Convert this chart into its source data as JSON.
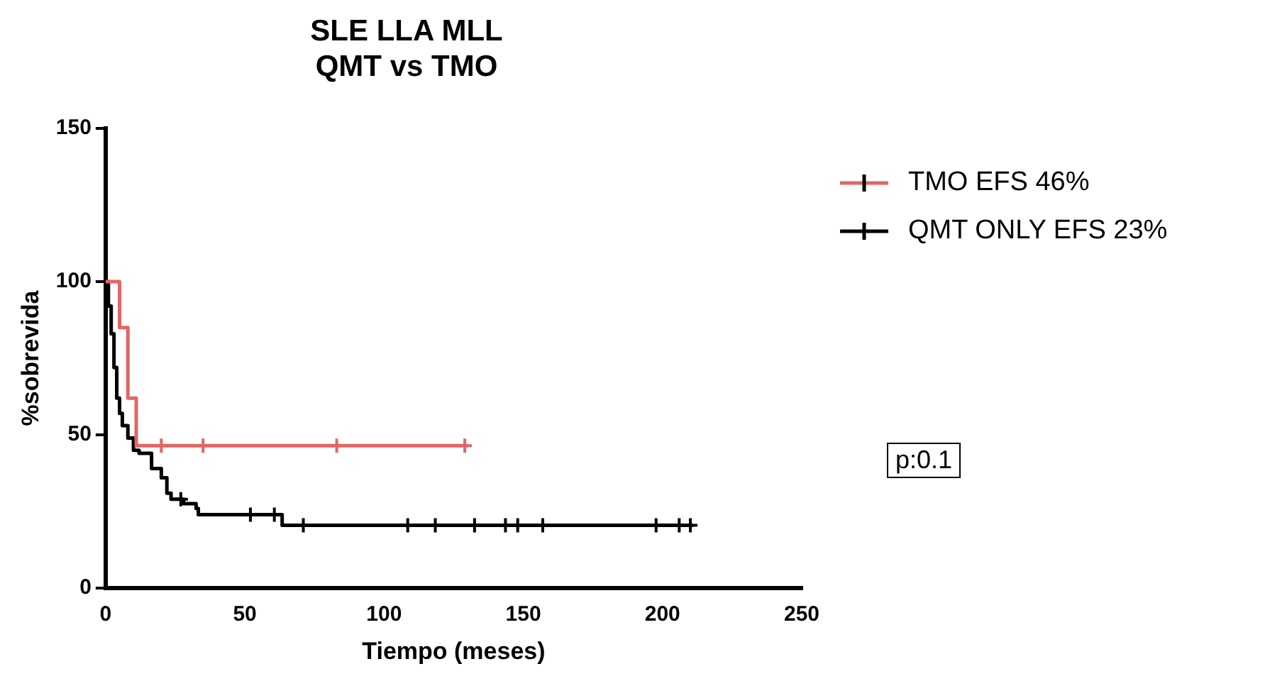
{
  "chart_data": {
    "type": "step",
    "title": "SLE LLA MLL\nQMT vs TMO",
    "xlabel": "Tiempo (meses)",
    "ylabel": "%sobrevida",
    "xlim": [
      0,
      250
    ],
    "xticks": [
      0,
      50,
      100,
      150,
      200,
      250
    ],
    "ylim": [
      0,
      150
    ],
    "yticks": [
      0,
      50,
      100,
      150
    ],
    "grid": false,
    "legend": "top right",
    "marker": "none",
    "annotations": [
      "p:0.1"
    ],
    "series": [
      {
        "name": "TMO EFS 46%",
        "color": "#e06666",
        "x": [
          0,
          5,
          8,
          11,
          130
        ],
        "values": [
          100,
          85,
          62,
          46.5,
          46.5
        ]
      },
      {
        "name": "QMT ONLY EFS 23%",
        "color": "#000000",
        "x": [
          0,
          1,
          2,
          3,
          4,
          5,
          6,
          8,
          10,
          12,
          16.5,
          20,
          22,
          23.5,
          28,
          32.5,
          33.3,
          63.4,
          211
        ],
        "values": [
          100,
          92,
          83,
          72,
          62,
          57,
          53,
          49,
          45,
          44,
          39,
          36,
          31,
          29,
          27.6,
          26,
          24,
          20.5,
          20.5
        ]
      },
      {
        "type": "scatter",
        "marker": "cross",
        "color": "#e06666",
        "x": [
          20,
          35,
          83,
          129
        ],
        "values": [
          46.5,
          46.5,
          46.5,
          46.5
        ]
      },
      {
        "type": "scatter",
        "marker": "cross",
        "color": "#000000",
        "x": [
          27,
          52,
          60.6,
          71,
          108.5,
          118.4,
          132.5,
          143.6,
          148,
          157,
          197.7,
          206,
          210
        ],
        "values": [
          29,
          24,
          24,
          20.5,
          20.5,
          20.5,
          20.5,
          20.5,
          20.5,
          20.5,
          20.5,
          20.5,
          20.5
        ]
      }
    ]
  }
}
